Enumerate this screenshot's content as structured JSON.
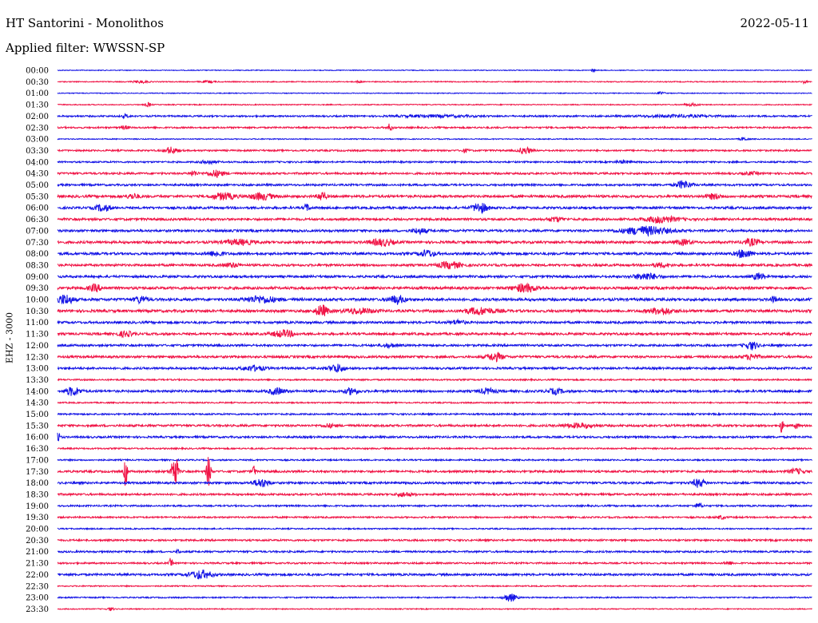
{
  "header": {
    "title": "HT Santorini - Monolithos",
    "date": "2022-05-11",
    "filter": "Applied filter: WWSSN-SP",
    "channel": "EHZ - 3000"
  },
  "colors": {
    "blue": "#1414e6",
    "red": "#f01446"
  },
  "chart_data": {
    "type": "line",
    "subtype": "helicorder",
    "ylabel": "EHZ - 3000",
    "rows": [
      {
        "label": "00:00",
        "color": "blue",
        "noise": 0.5,
        "events": [
          [
            0.71,
            2.5,
            0.002
          ]
        ]
      },
      {
        "label": "00:30",
        "color": "red",
        "noise": 0.6,
        "events": [
          [
            0.11,
            1.5,
            0.01
          ],
          [
            0.2,
            1.2,
            0.01
          ],
          [
            0.4,
            2,
            0.003
          ],
          [
            0.99,
            2,
            0.003
          ]
        ]
      },
      {
        "label": "01:00",
        "color": "blue",
        "noise": 0.5,
        "events": [
          [
            0.8,
            1.5,
            0.005
          ]
        ]
      },
      {
        "label": "01:30",
        "color": "red",
        "noise": 0.6,
        "events": [
          [
            0.12,
            2.5,
            0.004
          ],
          [
            0.84,
            1.5,
            0.01
          ]
        ]
      },
      {
        "label": "02:00",
        "color": "blue",
        "noise": 1.0,
        "events": [
          [
            0.09,
            2,
            0.004
          ],
          [
            0.5,
            1.2,
            0.05
          ],
          [
            0.82,
            1.2,
            0.05
          ]
        ]
      },
      {
        "label": "02:30",
        "color": "red",
        "noise": 1.0,
        "events": [
          [
            0.09,
            2,
            0.005
          ],
          [
            0.44,
            4,
            0.004
          ]
        ]
      },
      {
        "label": "03:00",
        "color": "blue",
        "noise": 0.6,
        "events": [
          [
            0.91,
            2,
            0.005
          ]
        ]
      },
      {
        "label": "03:30",
        "color": "red",
        "noise": 1.0,
        "events": [
          [
            0.15,
            4,
            0.008
          ],
          [
            0.54,
            2,
            0.005
          ],
          [
            0.62,
            4,
            0.008
          ]
        ]
      },
      {
        "label": "04:00",
        "color": "blue",
        "noise": 1.0,
        "events": [
          [
            0.2,
            2,
            0.01
          ],
          [
            0.75,
            1.5,
            0.01
          ]
        ]
      },
      {
        "label": "04:30",
        "color": "red",
        "noise": 1.2,
        "events": [
          [
            0.18,
            3,
            0.005
          ],
          [
            0.21,
            4,
            0.01
          ],
          [
            0.92,
            1.5,
            0.01
          ]
        ]
      },
      {
        "label": "05:00",
        "color": "blue",
        "noise": 1.2,
        "events": [
          [
            0.83,
            5,
            0.01
          ]
        ]
      },
      {
        "label": "05:30",
        "color": "red",
        "noise": 1.5,
        "events": [
          [
            0.1,
            3,
            0.008
          ],
          [
            0.22,
            4,
            0.015
          ],
          [
            0.27,
            4,
            0.015
          ],
          [
            0.35,
            6,
            0.005
          ],
          [
            0.87,
            3,
            0.01
          ]
        ]
      },
      {
        "label": "06:00",
        "color": "blue",
        "noise": 1.4,
        "events": [
          [
            0.06,
            4,
            0.01
          ],
          [
            0.33,
            4,
            0.004
          ],
          [
            0.56,
            6,
            0.01
          ]
        ]
      },
      {
        "label": "06:30",
        "color": "red",
        "noise": 1.4,
        "events": [
          [
            0.66,
            2.5,
            0.01
          ],
          [
            0.8,
            4,
            0.02
          ]
        ]
      },
      {
        "label": "07:00",
        "color": "blue",
        "noise": 1.4,
        "events": [
          [
            0.48,
            3,
            0.01
          ],
          [
            0.78,
            5,
            0.03
          ]
        ]
      },
      {
        "label": "07:30",
        "color": "red",
        "noise": 1.5,
        "events": [
          [
            0.24,
            3,
            0.02
          ],
          [
            0.43,
            4,
            0.015
          ],
          [
            0.83,
            3,
            0.01
          ],
          [
            0.92,
            4,
            0.01
          ]
        ]
      },
      {
        "label": "08:00",
        "color": "blue",
        "noise": 1.5,
        "events": [
          [
            0.21,
            3,
            0.01
          ],
          [
            0.49,
            4,
            0.01
          ],
          [
            0.91,
            5,
            0.01
          ]
        ]
      },
      {
        "label": "08:30",
        "color": "red",
        "noise": 1.4,
        "events": [
          [
            0.23,
            2.5,
            0.01
          ],
          [
            0.52,
            4,
            0.015
          ],
          [
            0.8,
            2.5,
            0.01
          ]
        ]
      },
      {
        "label": "09:00",
        "color": "blue",
        "noise": 1.4,
        "events": [
          [
            0.78,
            4,
            0.015
          ],
          [
            0.93,
            4,
            0.008
          ]
        ]
      },
      {
        "label": "09:30",
        "color": "red",
        "noise": 1.6,
        "events": [
          [
            0.05,
            4,
            0.008
          ],
          [
            0.62,
            5,
            0.015
          ]
        ]
      },
      {
        "label": "10:00",
        "color": "blue",
        "noise": 1.6,
        "events": [
          [
            0.01,
            6,
            0.01
          ],
          [
            0.11,
            4,
            0.008
          ],
          [
            0.27,
            4,
            0.02
          ],
          [
            0.45,
            5,
            0.01
          ],
          [
            0.95,
            3,
            0.005
          ]
        ]
      },
      {
        "label": "10:30",
        "color": "red",
        "noise": 1.6,
        "events": [
          [
            0.35,
            7,
            0.008
          ],
          [
            0.4,
            3,
            0.02
          ],
          [
            0.56,
            4,
            0.02
          ],
          [
            0.8,
            4,
            0.015
          ]
        ]
      },
      {
        "label": "11:00",
        "color": "blue",
        "noise": 1.4,
        "events": [
          [
            0.53,
            2.5,
            0.01
          ]
        ]
      },
      {
        "label": "11:30",
        "color": "red",
        "noise": 1.4,
        "events": [
          [
            0.09,
            3,
            0.01
          ],
          [
            0.3,
            4,
            0.015
          ]
        ]
      },
      {
        "label": "12:00",
        "color": "blue",
        "noise": 1.3,
        "events": [
          [
            0.44,
            2,
            0.01
          ],
          [
            0.92,
            5,
            0.008
          ]
        ]
      },
      {
        "label": "12:30",
        "color": "red",
        "noise": 1.4,
        "events": [
          [
            0.58,
            5,
            0.01
          ],
          [
            0.92,
            3,
            0.01
          ]
        ]
      },
      {
        "label": "13:00",
        "color": "blue",
        "noise": 1.3,
        "events": [
          [
            0.26,
            3,
            0.015
          ],
          [
            0.37,
            5,
            0.01
          ]
        ]
      },
      {
        "label": "13:30",
        "color": "red",
        "noise": 0.9,
        "events": []
      },
      {
        "label": "14:00",
        "color": "blue",
        "noise": 1.4,
        "events": [
          [
            0.02,
            5,
            0.01
          ],
          [
            0.29,
            4,
            0.01
          ],
          [
            0.39,
            4,
            0.008
          ],
          [
            0.57,
            3,
            0.01
          ],
          [
            0.66,
            3,
            0.01
          ]
        ]
      },
      {
        "label": "14:30",
        "color": "red",
        "noise": 0.8,
        "events": []
      },
      {
        "label": "15:00",
        "color": "blue",
        "noise": 1.0,
        "events": []
      },
      {
        "label": "15:30",
        "color": "red",
        "noise": 1.3,
        "events": [
          [
            0.36,
            2,
            0.008
          ],
          [
            0.69,
            2.5,
            0.02
          ],
          [
            0.96,
            10,
            0.002
          ],
          [
            0.98,
            6,
            0.002
          ]
        ]
      },
      {
        "label": "16:00",
        "color": "blue",
        "noise": 1.2,
        "events": [
          [
            0.0,
            6,
            0.003
          ]
        ]
      },
      {
        "label": "16:30",
        "color": "red",
        "noise": 0.9,
        "events": []
      },
      {
        "label": "17:00",
        "color": "blue",
        "noise": 0.9,
        "events": []
      },
      {
        "label": "17:30",
        "color": "red",
        "noise": 1.3,
        "events": [
          [
            0.09,
            22,
            0.002
          ],
          [
            0.155,
            24,
            0.004
          ],
          [
            0.2,
            20,
            0.003
          ],
          [
            0.26,
            8,
            0.002
          ],
          [
            0.98,
            3,
            0.01
          ]
        ]
      },
      {
        "label": "18:00",
        "color": "blue",
        "noise": 1.3,
        "events": [
          [
            0.27,
            5,
            0.01
          ],
          [
            0.85,
            5,
            0.008
          ]
        ]
      },
      {
        "label": "18:30",
        "color": "red",
        "noise": 1.2,
        "events": [
          [
            0.46,
            2.5,
            0.01
          ]
        ]
      },
      {
        "label": "19:00",
        "color": "blue",
        "noise": 1.0,
        "events": [
          [
            0.85,
            3,
            0.005
          ]
        ]
      },
      {
        "label": "19:30",
        "color": "red",
        "noise": 1.0,
        "events": [
          [
            0.88,
            2,
            0.005
          ]
        ]
      },
      {
        "label": "20:00",
        "color": "blue",
        "noise": 0.8,
        "events": []
      },
      {
        "label": "20:30",
        "color": "red",
        "noise": 1.1,
        "events": []
      },
      {
        "label": "21:00",
        "color": "blue",
        "noise": 1.1,
        "events": [
          [
            0.16,
            3,
            0.002
          ]
        ]
      },
      {
        "label": "21:30",
        "color": "red",
        "noise": 1.0,
        "events": [
          [
            0.15,
            6,
            0.002
          ],
          [
            0.89,
            2,
            0.005
          ]
        ]
      },
      {
        "label": "22:00",
        "color": "blue",
        "noise": 1.3,
        "events": [
          [
            0.19,
            5,
            0.015
          ]
        ]
      },
      {
        "label": "22:30",
        "color": "red",
        "noise": 0.7,
        "events": []
      },
      {
        "label": "23:00",
        "color": "blue",
        "noise": 0.8,
        "events": [
          [
            0.6,
            5,
            0.008
          ]
        ]
      },
      {
        "label": "23:30",
        "color": "red",
        "noise": 0.6,
        "events": [
          [
            0.07,
            2,
            0.004
          ]
        ]
      }
    ]
  }
}
